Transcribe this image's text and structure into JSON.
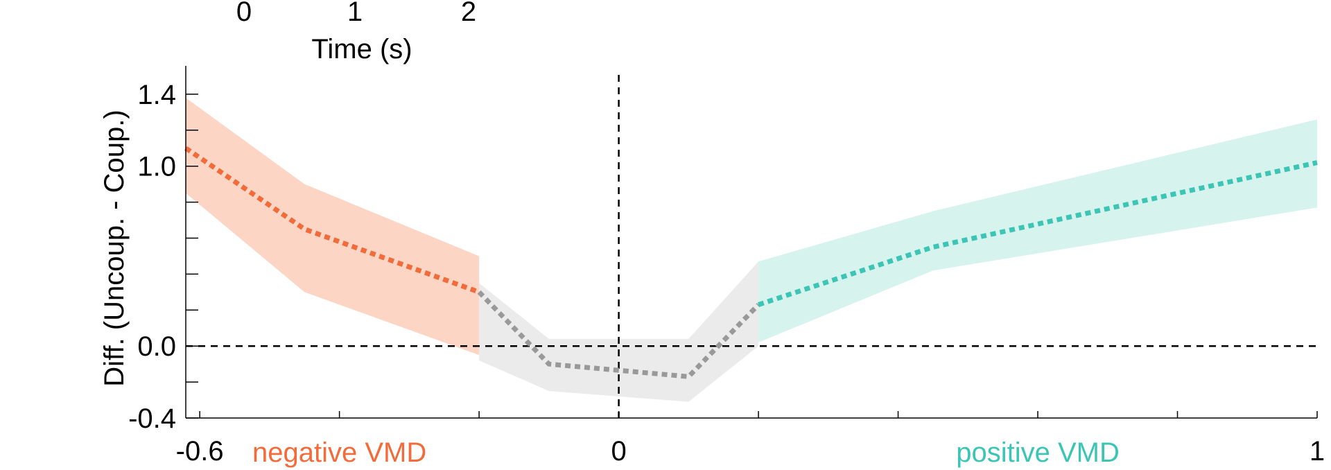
{
  "chart_data": {
    "type": "line",
    "ylabel": "Diff. (Uncoup. - Coup.)",
    "ylim": [
      -0.4,
      1.6
    ],
    "yticks": [
      -0.4,
      0.0,
      1.0,
      1.4
    ],
    "ytick_labels": [
      "-0.4",
      "0.0",
      "1.0",
      "1.4"
    ],
    "yminor_ticks": [
      -0.2,
      0.2,
      0.4,
      0.6,
      0.8,
      1.2
    ],
    "xlim": [
      -0.62,
      1.0
    ],
    "xticks": [
      -0.6,
      0.0,
      1.0
    ],
    "xtick_labels": [
      "-0.6",
      "0",
      "1"
    ],
    "xminor_ticks": [
      -0.4,
      -0.2,
      0.2,
      0.4,
      0.6,
      0.8
    ],
    "x_region_labels": [
      {
        "text": "negative VMD",
        "x": -0.4,
        "color": "#f26b3a"
      },
      {
        "text": "positive VMD",
        "x": 0.6,
        "color": "#3cc5b5"
      }
    ],
    "reference_lines": {
      "vertical_x": 0.0,
      "horizontal_y": 0.0
    },
    "series": [
      {
        "color": "#f26b3a",
        "band_color": "#fdd5c5",
        "x": [
          -0.62,
          -0.45,
          -0.2
        ],
        "y": [
          1.1,
          0.65,
          0.3
        ],
        "lower": [
          0.85,
          0.3,
          -0.05
        ],
        "upper": [
          1.38,
          0.9,
          0.5
        ]
      },
      {
        "color": "#999999",
        "band_color": "#ebebeb",
        "x": [
          -0.2,
          -0.1,
          0.1,
          0.2
        ],
        "y": [
          0.3,
          -0.1,
          -0.17,
          0.23
        ],
        "lower": [
          -0.08,
          -0.25,
          -0.31,
          0.0
        ],
        "upper": [
          0.35,
          0.04,
          0.04,
          0.47
        ]
      },
      {
        "color": "#3cc5b5",
        "band_color": "#d6f3ee",
        "x": [
          0.2,
          0.45,
          1.0
        ],
        "y": [
          0.23,
          0.55,
          1.02
        ],
        "lower": [
          0.02,
          0.42,
          0.77
        ],
        "upper": [
          0.47,
          0.75,
          1.26
        ]
      }
    ]
  },
  "inset_axis": {
    "xlabel": "Time (s)",
    "xtick_labels": [
      "0",
      "1",
      "2"
    ]
  }
}
